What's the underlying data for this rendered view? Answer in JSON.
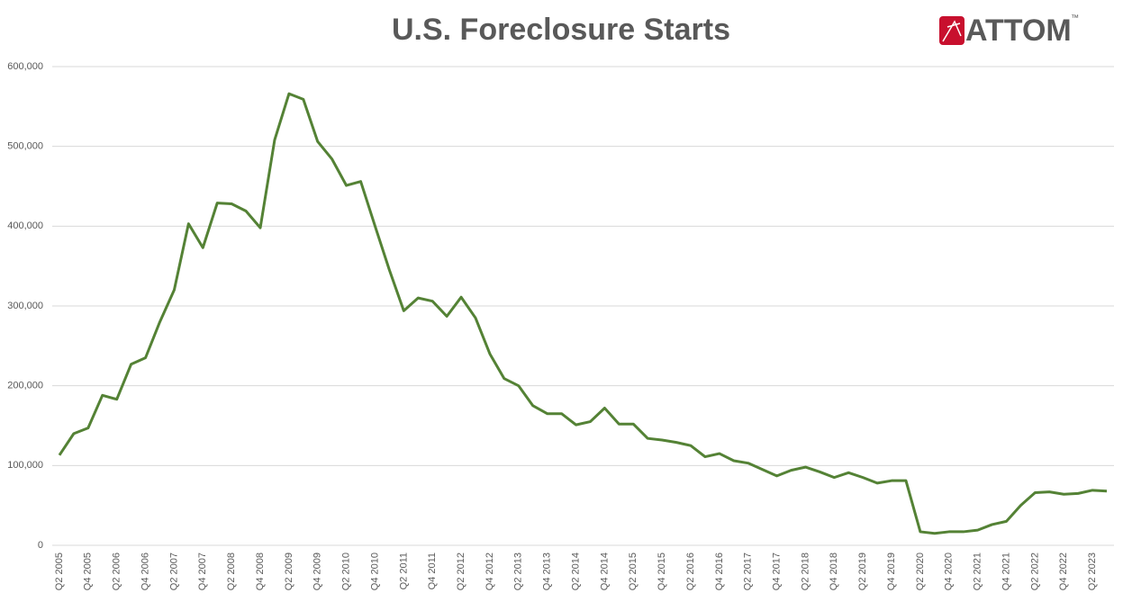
{
  "chart_data": {
    "type": "line",
    "title": "U.S. Foreclosure Starts",
    "logo": "ATTOM",
    "logo_mark": "™",
    "categories": [
      "Q2 2005",
      null,
      "Q4 2005",
      null,
      "Q2 2006",
      null,
      "Q4 2006",
      null,
      "Q2 2007",
      null,
      "Q4 2007",
      null,
      "Q2 2008",
      null,
      "Q4 2008",
      null,
      "Q2 2009",
      null,
      "Q4 2009",
      null,
      "Q2 2010",
      null,
      "Q4 2010",
      null,
      "Q2 2011",
      null,
      "Q4 2011",
      null,
      "Q2 2012",
      null,
      "Q4 2012",
      null,
      "Q2 2013",
      null,
      "Q4 2013",
      null,
      "Q2 2014",
      null,
      "Q4 2014",
      null,
      "Q2 2015",
      null,
      "Q4 2015",
      null,
      "Q2 2016",
      null,
      "Q4 2016",
      null,
      "Q2 2017",
      null,
      "Q4 2017",
      null,
      "Q2 2018",
      null,
      "Q4 2018",
      null,
      "Q2 2019",
      null,
      "Q4 2019",
      null,
      "Q2 2020",
      null,
      "Q4 2020",
      null,
      "Q2 2021",
      null,
      "Q4 2021",
      null,
      "Q2 2022",
      null,
      "Q4 2022",
      null,
      "Q2 2023",
      null
    ],
    "values": [
      113000,
      140000,
      147000,
      188000,
      183000,
      227000,
      235000,
      280000,
      320000,
      403000,
      373000,
      429000,
      428000,
      419000,
      398000,
      508000,
      566000,
      559000,
      506000,
      484000,
      451000,
      456000,
      400000,
      345000,
      294000,
      310000,
      306000,
      287000,
      311000,
      285000,
      240000,
      209000,
      200000,
      175000,
      165000,
      165000,
      151000,
      155000,
      172000,
      152000,
      152000,
      134000,
      132000,
      129000,
      125000,
      111000,
      115000,
      106000,
      103000,
      95000,
      87000,
      94000,
      98000,
      92000,
      85000,
      91000,
      85000,
      78000,
      81000,
      81000,
      17000,
      15000,
      17000,
      17000,
      19000,
      26000,
      30000,
      50000,
      66000,
      67000,
      64000,
      65000,
      69000,
      68000
    ],
    "color": "#548235",
    "ylim": [
      0,
      600000
    ],
    "yticks": [
      0,
      {
        "value": 100000,
        "label": "100,000"
      },
      {
        "value": 200000,
        "label": "200,000"
      },
      {
        "value": 300000,
        "label": "300,000"
      },
      {
        "value": 400000,
        "label": "400,000"
      },
      {
        "value": 500000,
        "label": "500,000"
      },
      {
        "value": 600000,
        "label": "600,000"
      }
    ],
    "grid": true
  }
}
